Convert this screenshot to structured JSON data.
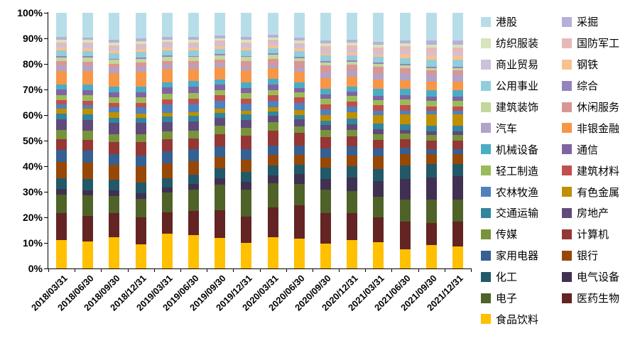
{
  "chart_data": {
    "type": "bar",
    "subtype": "stacked-100-percent",
    "title": "",
    "xlabel": "",
    "ylabel": "",
    "grid": false,
    "legend_position": "right",
    "y_axis": {
      "min": 0,
      "max": 100,
      "step": 10,
      "unit": "%",
      "tick_labels": [
        "0%",
        "10%",
        "20%",
        "30%",
        "40%",
        "50%",
        "60%",
        "70%",
        "80%",
        "90%",
        "100%"
      ]
    },
    "categories": [
      "2018/03/31",
      "2018/06/30",
      "2018/09/30",
      "2018/12/31",
      "2019/03/31",
      "2019/06/30",
      "2019/09/30",
      "2019/12/31",
      "2020/03/31",
      "2020/06/30",
      "2020/09/30",
      "2020/12/31",
      "2021/03/31",
      "2021/06/30",
      "2021/09/30",
      "2021/12/31"
    ],
    "series": [
      {
        "name": "食品饮料",
        "color": "#FFC000",
        "values": [
          10.5,
          10,
          11.5,
          9,
          13,
          12.5,
          11.5,
          9.5,
          11.5,
          11,
          9,
          10.5,
          9.5,
          7,
          8.5,
          8
        ]
      },
      {
        "name": "医药生物",
        "color": "#632423",
        "values": [
          10,
          9.5,
          9,
          10,
          8,
          9,
          10.5,
          10,
          11,
          12,
          11,
          10,
          9,
          10,
          8,
          9
        ]
      },
      {
        "name": "电子",
        "color": "#4F6228",
        "values": [
          7,
          7.5,
          6.5,
          7,
          7.5,
          8,
          9.5,
          10,
          9,
          8,
          8.5,
          8,
          7.5,
          8,
          8.5,
          8
        ]
      },
      {
        "name": "电气设备",
        "color": "#403152",
        "values": [
          2,
          2,
          2,
          2,
          2,
          2,
          2.5,
          3,
          3,
          3.5,
          4,
          5,
          5.5,
          7.5,
          8,
          8.5
        ]
      },
      {
        "name": "化工",
        "color": "#215968",
        "values": [
          4,
          4,
          4,
          4,
          3.5,
          3.5,
          3.5,
          3.5,
          3.5,
          3.5,
          4,
          4,
          4.5,
          5,
          5,
          4.5
        ]
      },
      {
        "name": "银行",
        "color": "#974807",
        "values": [
          6,
          6,
          5.5,
          6,
          5.5,
          5,
          4.5,
          4.5,
          4,
          3.5,
          3.5,
          4,
          4.5,
          4,
          3.5,
          3.5
        ]
      },
      {
        "name": "家用电器",
        "color": "#366092",
        "values": [
          4.5,
          4.5,
          4,
          4,
          4.5,
          4.5,
          4,
          4,
          3.5,
          3.5,
          3.5,
          3.5,
          3,
          2.5,
          2,
          2
        ]
      },
      {
        "name": "计算机",
        "color": "#953735",
        "values": [
          4,
          4,
          4.5,
          5,
          4.5,
          4,
          4.5,
          5,
          5.5,
          4.5,
          4,
          3.5,
          3,
          3,
          3,
          3
        ]
      },
      {
        "name": "传媒",
        "color": "#77933C",
        "values": [
          3.5,
          3.5,
          3,
          3,
          3,
          3,
          3,
          3,
          3,
          2.5,
          2.5,
          2.5,
          2,
          2,
          2,
          2
        ]
      },
      {
        "name": "房地产",
        "color": "#604A7B",
        "values": [
          4,
          4,
          4,
          4,
          3.5,
          3.5,
          3,
          3,
          2.5,
          2.5,
          2,
          2,
          2,
          1.5,
          1.5,
          1.5
        ]
      },
      {
        "name": "交通运输",
        "color": "#31859C",
        "values": [
          2,
          2,
          2,
          2,
          2,
          2,
          2,
          2,
          1.5,
          1.5,
          1.5,
          2,
          2,
          2,
          2,
          2
        ]
      },
      {
        "name": "有色金属",
        "color": "#BF8F00",
        "values": [
          2,
          2,
          2,
          1.5,
          1.5,
          1.5,
          1.5,
          1.5,
          1.5,
          2,
          2,
          2.5,
          3,
          3.5,
          4,
          4
        ]
      },
      {
        "name": "农林牧渔",
        "color": "#4F81BD",
        "values": [
          1.5,
          1.5,
          2,
          2.5,
          3,
          3,
          3,
          2.5,
          2.5,
          2.5,
          2,
          2,
          1.5,
          1.5,
          1.5,
          1.5
        ]
      },
      {
        "name": "建筑材料",
        "color": "#C0504D",
        "values": [
          1.5,
          1.5,
          1.5,
          1.5,
          2,
          2,
          2,
          2,
          2,
          2,
          2,
          2,
          2,
          2,
          1.5,
          1.5
        ]
      },
      {
        "name": "轻工制造",
        "color": "#9BBB59",
        "values": [
          2,
          2,
          2,
          2,
          2,
          2,
          2,
          2,
          2,
          2,
          2,
          2,
          2,
          2,
          2,
          2
        ]
      },
      {
        "name": "通信",
        "color": "#8064A2",
        "values": [
          2,
          2,
          2,
          2,
          2.5,
          2.5,
          2,
          2,
          2,
          1.5,
          1.5,
          1.5,
          1.5,
          1.5,
          1.5,
          1.5
        ]
      },
      {
        "name": "机械设备",
        "color": "#4BACC6",
        "values": [
          2,
          2,
          2,
          2,
          2,
          2,
          2,
          2,
          2,
          2,
          2,
          2,
          2.5,
          2.5,
          2.5,
          2.5
        ]
      },
      {
        "name": "非银金融",
        "color": "#F79646",
        "values": [
          5,
          5,
          5,
          5.5,
          5,
          4.5,
          4.5,
          4.5,
          4,
          4,
          4,
          3.5,
          3.5,
          3,
          3,
          3
        ]
      },
      {
        "name": "汽车",
        "color": "#B3A2C7",
        "values": [
          2,
          2,
          2,
          2,
          1.5,
          1.5,
          1.5,
          1.5,
          1.5,
          1.5,
          2,
          2,
          2,
          2.5,
          2.5,
          2.5
        ]
      },
      {
        "name": "休闲服务",
        "color": "#D99694",
        "values": [
          1.5,
          1.5,
          1.5,
          1.5,
          1.5,
          1.5,
          1.5,
          2,
          2,
          2.5,
          2.5,
          2.5,
          2.5,
          2,
          1.5,
          1.5
        ]
      },
      {
        "name": "建筑装饰",
        "color": "#C3D69B",
        "values": [
          1.5,
          1.5,
          1.5,
          1.5,
          1.5,
          1.5,
          1.5,
          1.5,
          1.5,
          1,
          1,
          1,
          1,
          1,
          1,
          1
        ]
      },
      {
        "name": "综合",
        "color": "#9583BD",
        "values": [
          0.5,
          0.5,
          0.5,
          0.5,
          0.5,
          0.5,
          0.5,
          0.5,
          0.5,
          0.5,
          0.5,
          0.5,
          0.5,
          0.5,
          0.5,
          0.5
        ]
      },
      {
        "name": "公用事业",
        "color": "#92CDDC",
        "values": [
          2,
          2,
          2,
          2,
          2,
          2,
          2,
          2,
          2,
          2,
          2,
          2,
          2,
          2,
          2.5,
          2.5
        ]
      },
      {
        "name": "钢铁",
        "color": "#FAC090",
        "values": [
          1,
          1,
          1,
          1,
          1,
          1,
          1,
          1,
          1,
          1,
          1,
          1,
          1,
          1.5,
          1.5,
          1.5
        ]
      },
      {
        "name": "商业贸易",
        "color": "#CCC1DA",
        "values": [
          1,
          1,
          1,
          1,
          1,
          1,
          1,
          1,
          1,
          1,
          1,
          1,
          1,
          1,
          1,
          1
        ]
      },
      {
        "name": "国防军工",
        "color": "#E6B9B8",
        "values": [
          1,
          1,
          1,
          1,
          1,
          1,
          1,
          1,
          1,
          1,
          1.5,
          1.5,
          1.5,
          2,
          2,
          2
        ]
      },
      {
        "name": "纺织服装",
        "color": "#D7E4BC",
        "values": [
          1,
          1,
          1,
          1,
          1,
          1,
          1,
          1,
          1,
          1,
          1,
          1,
          1,
          1,
          1,
          1
        ]
      },
      {
        "name": "采掘",
        "color": "#B8AFD8",
        "values": [
          1,
          1,
          1,
          1,
          1,
          1,
          1,
          1,
          1,
          1,
          1,
          1,
          1,
          1,
          1.5,
          1.5
        ]
      },
      {
        "name": "港股",
        "color": "#B7DEE8",
        "values": [
          9,
          9,
          10,
          9.5,
          9,
          9,
          8.5,
          9,
          8,
          9,
          10,
          10,
          10.5,
          10,
          10,
          10
        ]
      }
    ],
    "legend_columns": [
      [
        "港股",
        "纺织服装",
        "商业贸易",
        "公用事业",
        "建筑装饰",
        "汽车",
        "机械设备",
        "轻工制造",
        "农林牧渔",
        "交通运输",
        "传媒",
        "家用电器",
        "化工",
        "电子",
        "食品饮料"
      ],
      [
        "采掘",
        "国防军工",
        "钢铁",
        "综合",
        "休闲服务",
        "非银金融",
        "通信",
        "建筑材料",
        "有色金属",
        "房地产",
        "计算机",
        "银行",
        "电气设备",
        "医药生物"
      ]
    ]
  }
}
